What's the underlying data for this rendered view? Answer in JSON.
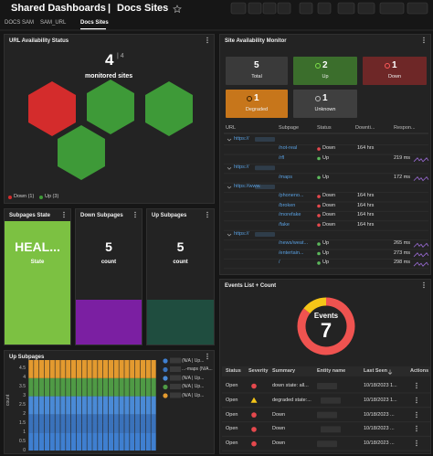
{
  "header": {
    "title": "Shared Dashboards",
    "separator": "|",
    "page": "Docs Sites"
  },
  "tabs": {
    "items": [
      "DOCS SAM",
      "SAM_URL",
      "Docs Sites"
    ],
    "active": 2
  },
  "url_status": {
    "title": "URL Availability Status",
    "count": "4",
    "total": "| 4",
    "caption": "monitored sites",
    "hexes": [
      "#d42c2c",
      "#3e9a38",
      "#3e9a38",
      "#3e9a38"
    ],
    "legend": [
      {
        "label": "Down (1)",
        "color": "#d42c2c"
      },
      {
        "label": "Up (3)",
        "color": "#3e9a38"
      }
    ]
  },
  "monitor": {
    "title": "Site Availability Monitor",
    "tiles": [
      {
        "value": "5",
        "label": "Total",
        "color": "#3a3a3a"
      },
      {
        "value": "2",
        "label": "Up",
        "color": "#3b6e2c",
        "icon": "#7ee04a"
      },
      {
        "value": "1",
        "label": "Down",
        "color": "#6e2727",
        "icon": "#ff5a5a"
      },
      {
        "value": "1",
        "label": "Degraded",
        "color": "#c7761b",
        "icon": "#3a2000"
      },
      {
        "value": "1",
        "label": "Unknown",
        "color": "#3f3f3f",
        "icon": "#bbbbbb"
      }
    ],
    "columns": [
      "URL",
      "Subpage",
      "Status",
      "Downti...",
      "Respon..."
    ],
    "rows": [
      {
        "url": "https://"
      },
      {
        "subpage": "/not-real",
        "status": "Down",
        "dot": "#e5484d",
        "downtime": "164 hrs"
      },
      {
        "subpage": "/rfl",
        "status": "Up",
        "dot": "#5cb85c",
        "response": "219 ms"
      },
      {
        "url": "https://"
      },
      {
        "subpage": "/maps",
        "status": "Up",
        "dot": "#5cb85c",
        "response": "172 ms"
      },
      {
        "url": "https://www."
      },
      {
        "subpage": "/phoneno...",
        "status": "Down",
        "dot": "#e5484d",
        "downtime": "164 hrs"
      },
      {
        "subpage": "/broken",
        "status": "Down",
        "dot": "#e5484d",
        "downtime": "164 hrs"
      },
      {
        "subpage": "/morefake",
        "status": "Down",
        "dot": "#e5484d",
        "downtime": "164 hrs"
      },
      {
        "subpage": "/fake",
        "status": "Down",
        "dot": "#e5484d",
        "downtime": "164 hrs"
      },
      {
        "url": "https://"
      },
      {
        "subpage": "/news/weat...",
        "status": "Up",
        "dot": "#5cb85c",
        "response": "265 ms"
      },
      {
        "subpage": "/entertain...",
        "status": "Up",
        "dot": "#5cb85c",
        "response": "273 ms"
      },
      {
        "subpage": "/",
        "status": "Up",
        "dot": "#5cb85c",
        "response": "298 ms"
      }
    ]
  },
  "subpages_state": {
    "title": "Subpages State",
    "value": "HEAL...",
    "label": "State",
    "color": "#7cc142"
  },
  "down_subpages": {
    "title": "Down Subpages",
    "value": "5",
    "label": "count",
    "color": "#7b1fa2"
  },
  "up_subpages": {
    "title": "Up Subpages",
    "value": "5",
    "label": "count",
    "color": "#1f4d3f"
  },
  "events": {
    "title": "Events List + Count",
    "center_label": "Events",
    "count": "7",
    "columns": [
      "Status",
      "Severity",
      "Summary",
      "Entity name",
      "Last Seen",
      "Actions"
    ],
    "rows": [
      {
        "status": "Open",
        "severity": "circle",
        "color": "#e5484d",
        "summary": "down state: all...",
        "last_seen": "10/18/2023 1..."
      },
      {
        "status": "Open",
        "severity": "triangle",
        "color": "#f5c518",
        "summary": "degraded state:...",
        "last_seen": "10/18/2023 1..."
      },
      {
        "status": "Open",
        "severity": "circle",
        "color": "#e5484d",
        "summary": "Down",
        "last_seen": "10/18/2023 ..."
      },
      {
        "status": "Open",
        "severity": "circle",
        "color": "#e5484d",
        "summary": "Down",
        "last_seen": "10/18/2023 ..."
      },
      {
        "status": "Open",
        "severity": "circle",
        "color": "#e5484d",
        "summary": "Down",
        "last_seen": "10/18/2023 ..."
      }
    ]
  },
  "chart_data": [
    {
      "type": "bar",
      "stacked": true,
      "title": "Up Subpages",
      "y_label": "count",
      "grid": true,
      "legend": "right",
      "categories": [
        null,
        null,
        null,
        null,
        null,
        null,
        null,
        null,
        null,
        null,
        null,
        null,
        null,
        null,
        null,
        null,
        null,
        null,
        null,
        null,
        null,
        null,
        null,
        null
      ],
      "ylim": [
        0,
        5
      ],
      "yticks": [
        0,
        0.5,
        1,
        1.5,
        2,
        2.5,
        3,
        3.5,
        4,
        4.5
      ],
      "series": [
        {
          "name": "(N/A | Up...",
          "color": "#3f7fd0",
          "values": [
            1,
            1,
            1,
            1,
            1,
            1,
            1,
            1,
            1,
            1,
            1,
            1,
            1,
            1,
            1,
            1,
            1,
            1,
            1,
            1,
            1,
            1,
            1,
            1
          ]
        },
        {
          "name": "...-maps (N/A...",
          "color": "#3a72bb",
          "values": [
            1,
            1,
            1,
            1,
            1,
            1,
            1,
            1,
            1,
            1,
            1,
            1,
            1,
            1,
            1,
            1,
            1,
            1,
            1,
            1,
            1,
            1,
            1,
            1
          ]
        },
        {
          "name": "(N/A | Up...",
          "color": "#4a8ad6",
          "values": [
            1,
            1,
            1,
            1,
            1,
            1,
            1,
            1,
            1,
            1,
            1,
            1,
            1,
            1,
            1,
            1,
            1,
            1,
            1,
            1,
            1,
            1,
            1,
            1
          ]
        },
        {
          "name": "(N/A | Up...",
          "color": "#4f9a45",
          "values": [
            1,
            1,
            1,
            1,
            1,
            1,
            1,
            1,
            1,
            1,
            1,
            1,
            1,
            1,
            1,
            1,
            1,
            1,
            1,
            1,
            1,
            1,
            1,
            1
          ]
        },
        {
          "name": "(N/A | Up...",
          "color": "#e39a2f",
          "values": [
            1,
            1,
            1,
            1,
            1,
            1,
            1,
            1,
            1,
            1,
            1,
            1,
            1,
            1,
            1,
            1,
            1,
            1,
            1,
            1,
            1,
            1,
            1,
            1
          ]
        }
      ]
    },
    {
      "type": "pie",
      "donut": true,
      "values": [
        6,
        1
      ],
      "colors": [
        "#ef5350",
        "#f5c518"
      ]
    }
  ]
}
